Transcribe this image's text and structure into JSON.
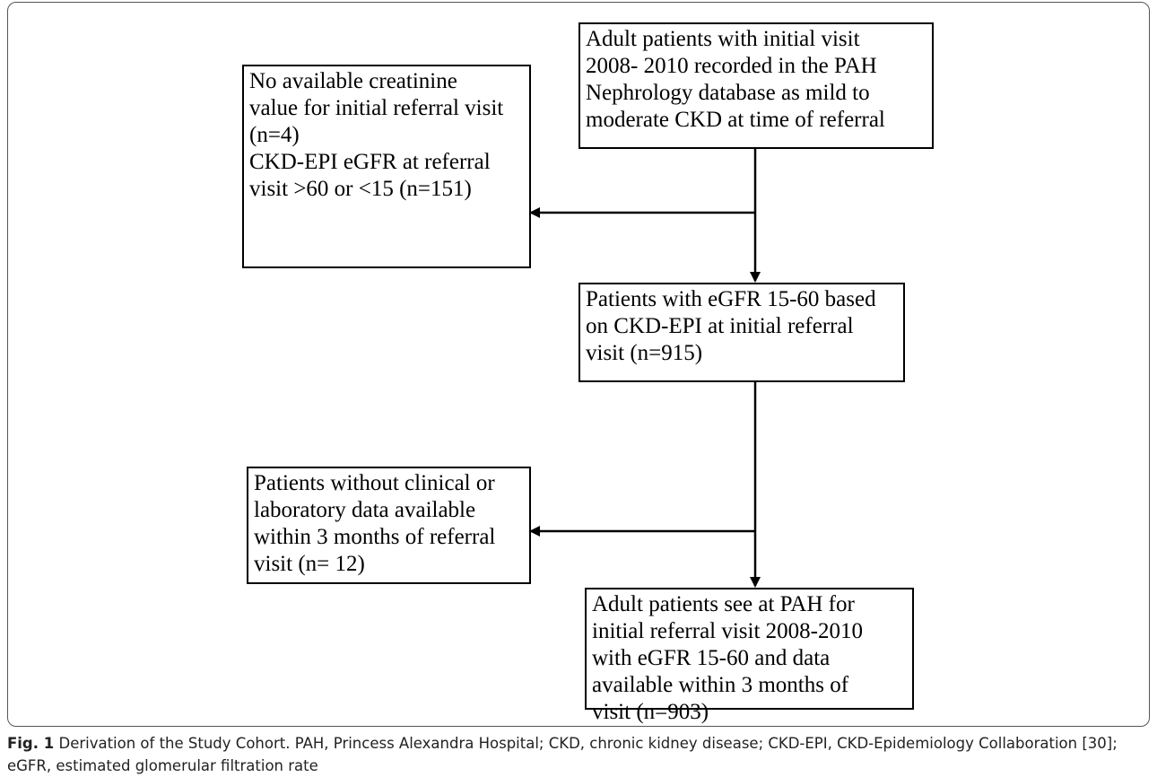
{
  "nodes": [
    {
      "lines": [
        "Adult patients with initial visit",
        "2008- 2010 recorded in the PAH",
        "Nephrology database as mild to",
        "moderate CKD at time of referral"
      ]
    },
    {
      "lines": [
        "No available creatinine",
        "value for initial referral visit",
        "(n=4)",
        "CKD-EPI eGFR at referral",
        "visit >60 or <15 (n=151)"
      ]
    },
    {
      "lines": [
        "Patients with eGFR 15-60 based",
        "on CKD-EPI at initial referral",
        "visit (n=915)"
      ]
    },
    {
      "lines": [
        "Patients without clinical or",
        "laboratory data available",
        "within 3 months of referral",
        "visit (n= 12)"
      ]
    },
    {
      "lines": [
        "Adult patients see at PAH for",
        "initial referral visit 2008-2010",
        "with eGFR 15-60 and data",
        "available within 3 months of",
        "visit (n=903)"
      ]
    }
  ],
  "caption": {
    "label": "Fig. 1",
    "text": "Derivation of the Study Cohort. PAH, Princess Alexandra Hospital; CKD, chronic kidney disease; CKD-EPI, CKD-Epidemiology Collaboration [30]; eGFR, estimated glomerular filtration rate"
  }
}
